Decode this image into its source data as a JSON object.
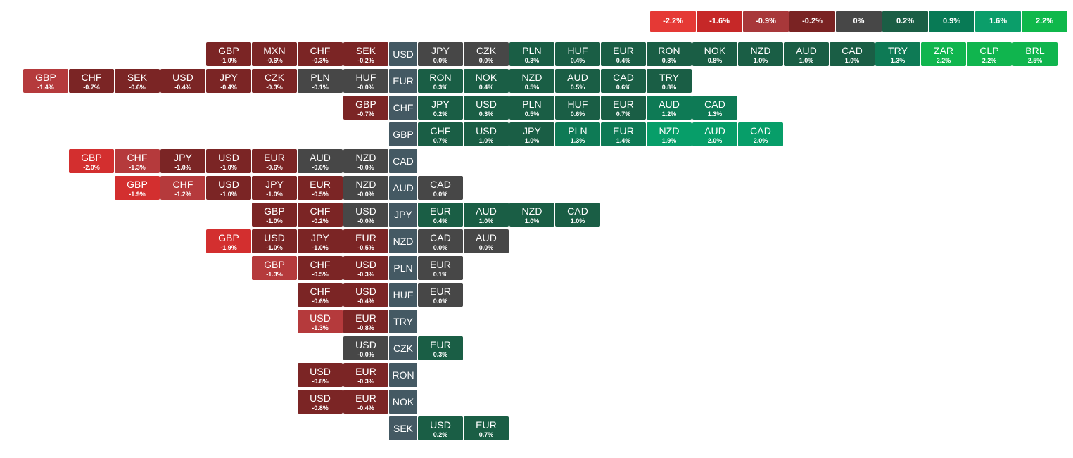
{
  "chart_data": {
    "type": "heatmap",
    "legend": {
      "placement": "top-right",
      "steps": [
        {
          "label": "-2.2%",
          "color": "#e53935"
        },
        {
          "label": "-1.6%",
          "color": "#c62828"
        },
        {
          "label": "-0.9%",
          "color": "#a8383a"
        },
        {
          "label": "-0.2%",
          "color": "#7a2323"
        },
        {
          "label": "0%",
          "color": "#474747"
        },
        {
          "label": "0.2%",
          "color": "#1b5e45"
        },
        {
          "label": "0.9%",
          "color": "#087a55"
        },
        {
          "label": "1.6%",
          "color": "#0b9e6a"
        },
        {
          "label": "2.2%",
          "color": "#0fb84b"
        }
      ]
    },
    "rows": [
      {
        "base": "USD",
        "left": [
          {
            "ccy": "GBP",
            "chg": "-1.0%",
            "value": -1.0
          },
          {
            "ccy": "MXN",
            "chg": "-0.6%",
            "value": -0.6
          },
          {
            "ccy": "CHF",
            "chg": "-0.3%",
            "value": -0.3
          },
          {
            "ccy": "SEK",
            "chg": "-0.2%",
            "value": -0.2
          }
        ],
        "right": [
          {
            "ccy": "JPY",
            "chg": "0.0%",
            "value": 0.0
          },
          {
            "ccy": "CZK",
            "chg": "0.0%",
            "value": 0.0
          },
          {
            "ccy": "PLN",
            "chg": "0.3%",
            "value": 0.3
          },
          {
            "ccy": "HUF",
            "chg": "0.4%",
            "value": 0.4
          },
          {
            "ccy": "EUR",
            "chg": "0.4%",
            "value": 0.4
          },
          {
            "ccy": "RON",
            "chg": "0.8%",
            "value": 0.8
          },
          {
            "ccy": "NOK",
            "chg": "0.8%",
            "value": 0.8
          },
          {
            "ccy": "NZD",
            "chg": "1.0%",
            "value": 1.0
          },
          {
            "ccy": "AUD",
            "chg": "1.0%",
            "value": 1.0
          },
          {
            "ccy": "CAD",
            "chg": "1.0%",
            "value": 1.0
          },
          {
            "ccy": "TRY",
            "chg": "1.3%",
            "value": 1.3
          },
          {
            "ccy": "ZAR",
            "chg": "2.2%",
            "value": 2.2
          },
          {
            "ccy": "CLP",
            "chg": "2.2%",
            "value": 2.2
          },
          {
            "ccy": "BRL",
            "chg": "2.5%",
            "value": 2.5
          }
        ]
      },
      {
        "base": "EUR",
        "left": [
          {
            "ccy": "GBP",
            "chg": "-1.4%",
            "value": -1.4
          },
          {
            "ccy": "CHF",
            "chg": "-0.7%",
            "value": -0.7
          },
          {
            "ccy": "SEK",
            "chg": "-0.6%",
            "value": -0.6
          },
          {
            "ccy": "USD",
            "chg": "-0.4%",
            "value": -0.4
          },
          {
            "ccy": "JPY",
            "chg": "-0.4%",
            "value": -0.4
          },
          {
            "ccy": "CZK",
            "chg": "-0.3%",
            "value": -0.3
          },
          {
            "ccy": "PLN",
            "chg": "-0.1%",
            "value": -0.1
          },
          {
            "ccy": "HUF",
            "chg": "-0.0%",
            "value": -0.0
          }
        ],
        "right": [
          {
            "ccy": "RON",
            "chg": "0.3%",
            "value": 0.3
          },
          {
            "ccy": "NOK",
            "chg": "0.4%",
            "value": 0.4
          },
          {
            "ccy": "NZD",
            "chg": "0.5%",
            "value": 0.5
          },
          {
            "ccy": "AUD",
            "chg": "0.5%",
            "value": 0.5
          },
          {
            "ccy": "CAD",
            "chg": "0.6%",
            "value": 0.6
          },
          {
            "ccy": "TRY",
            "chg": "0.8%",
            "value": 0.8
          }
        ]
      },
      {
        "base": "CHF",
        "left": [
          {
            "ccy": "GBP",
            "chg": "-0.7%",
            "value": -0.7
          }
        ],
        "right": [
          {
            "ccy": "JPY",
            "chg": "0.2%",
            "value": 0.2
          },
          {
            "ccy": "USD",
            "chg": "0.3%",
            "value": 0.3
          },
          {
            "ccy": "PLN",
            "chg": "0.5%",
            "value": 0.5
          },
          {
            "ccy": "HUF",
            "chg": "0.6%",
            "value": 0.6
          },
          {
            "ccy": "EUR",
            "chg": "0.7%",
            "value": 0.7
          },
          {
            "ccy": "AUD",
            "chg": "1.2%",
            "value": 1.2
          },
          {
            "ccy": "CAD",
            "chg": "1.3%",
            "value": 1.3
          }
        ]
      },
      {
        "base": "GBP",
        "left": [],
        "right": [
          {
            "ccy": "CHF",
            "chg": "0.7%",
            "value": 0.7
          },
          {
            "ccy": "USD",
            "chg": "1.0%",
            "value": 1.0
          },
          {
            "ccy": "JPY",
            "chg": "1.0%",
            "value": 1.0
          },
          {
            "ccy": "PLN",
            "chg": "1.3%",
            "value": 1.3
          },
          {
            "ccy": "EUR",
            "chg": "1.4%",
            "value": 1.4
          },
          {
            "ccy": "NZD",
            "chg": "1.9%",
            "value": 1.9
          },
          {
            "ccy": "AUD",
            "chg": "2.0%",
            "value": 2.0
          },
          {
            "ccy": "CAD",
            "chg": "2.0%",
            "value": 2.0
          }
        ]
      },
      {
        "base": "CAD",
        "left": [
          {
            "ccy": "GBP",
            "chg": "-2.0%",
            "value": -2.0
          },
          {
            "ccy": "CHF",
            "chg": "-1.3%",
            "value": -1.3
          },
          {
            "ccy": "JPY",
            "chg": "-1.0%",
            "value": -1.0
          },
          {
            "ccy": "USD",
            "chg": "-1.0%",
            "value": -1.0
          },
          {
            "ccy": "EUR",
            "chg": "-0.6%",
            "value": -0.6
          },
          {
            "ccy": "AUD",
            "chg": "-0.0%",
            "value": -0.0
          },
          {
            "ccy": "NZD",
            "chg": "-0.0%",
            "value": -0.0
          }
        ],
        "right": []
      },
      {
        "base": "AUD",
        "left": [
          {
            "ccy": "GBP",
            "chg": "-1.9%",
            "value": -1.9
          },
          {
            "ccy": "CHF",
            "chg": "-1.2%",
            "value": -1.2
          },
          {
            "ccy": "USD",
            "chg": "-1.0%",
            "value": -1.0
          },
          {
            "ccy": "JPY",
            "chg": "-1.0%",
            "value": -1.0
          },
          {
            "ccy": "EUR",
            "chg": "-0.5%",
            "value": -0.5
          },
          {
            "ccy": "NZD",
            "chg": "-0.0%",
            "value": -0.0
          }
        ],
        "right": [
          {
            "ccy": "CAD",
            "chg": "0.0%",
            "value": 0.0
          }
        ]
      },
      {
        "base": "JPY",
        "left": [
          {
            "ccy": "GBP",
            "chg": "-1.0%",
            "value": -1.0
          },
          {
            "ccy": "CHF",
            "chg": "-0.2%",
            "value": -0.2
          },
          {
            "ccy": "USD",
            "chg": "-0.0%",
            "value": -0.0
          }
        ],
        "right": [
          {
            "ccy": "EUR",
            "chg": "0.4%",
            "value": 0.4
          },
          {
            "ccy": "AUD",
            "chg": "1.0%",
            "value": 1.0
          },
          {
            "ccy": "NZD",
            "chg": "1.0%",
            "value": 1.0
          },
          {
            "ccy": "CAD",
            "chg": "1.0%",
            "value": 1.0
          }
        ]
      },
      {
        "base": "NZD",
        "left": [
          {
            "ccy": "GBP",
            "chg": "-1.9%",
            "value": -1.9
          },
          {
            "ccy": "USD",
            "chg": "-1.0%",
            "value": -1.0
          },
          {
            "ccy": "JPY",
            "chg": "-1.0%",
            "value": -1.0
          },
          {
            "ccy": "EUR",
            "chg": "-0.5%",
            "value": -0.5
          }
        ],
        "right": [
          {
            "ccy": "CAD",
            "chg": "0.0%",
            "value": 0.0
          },
          {
            "ccy": "AUD",
            "chg": "0.0%",
            "value": 0.0
          }
        ]
      },
      {
        "base": "PLN",
        "left": [
          {
            "ccy": "GBP",
            "chg": "-1.3%",
            "value": -1.3
          },
          {
            "ccy": "CHF",
            "chg": "-0.5%",
            "value": -0.5
          },
          {
            "ccy": "USD",
            "chg": "-0.3%",
            "value": -0.3
          }
        ],
        "right": [
          {
            "ccy": "EUR",
            "chg": "0.1%",
            "value": 0.1
          }
        ]
      },
      {
        "base": "HUF",
        "left": [
          {
            "ccy": "CHF",
            "chg": "-0.6%",
            "value": -0.6
          },
          {
            "ccy": "USD",
            "chg": "-0.4%",
            "value": -0.4
          }
        ],
        "right": [
          {
            "ccy": "EUR",
            "chg": "0.0%",
            "value": 0.0
          }
        ]
      },
      {
        "base": "TRY",
        "left": [
          {
            "ccy": "USD",
            "chg": "-1.3%",
            "value": -1.3
          },
          {
            "ccy": "EUR",
            "chg": "-0.8%",
            "value": -0.8
          }
        ],
        "right": []
      },
      {
        "base": "CZK",
        "left": [
          {
            "ccy": "USD",
            "chg": "-0.0%",
            "value": -0.0
          }
        ],
        "right": [
          {
            "ccy": "EUR",
            "chg": "0.3%",
            "value": 0.3
          }
        ]
      },
      {
        "base": "RON",
        "left": [
          {
            "ccy": "USD",
            "chg": "-0.8%",
            "value": -0.8
          },
          {
            "ccy": "EUR",
            "chg": "-0.3%",
            "value": -0.3
          }
        ],
        "right": []
      },
      {
        "base": "NOK",
        "left": [
          {
            "ccy": "USD",
            "chg": "-0.8%",
            "value": -0.8
          },
          {
            "ccy": "EUR",
            "chg": "-0.4%",
            "value": -0.4
          }
        ],
        "right": []
      },
      {
        "base": "SEK",
        "left": [],
        "right": [
          {
            "ccy": "USD",
            "chg": "0.2%",
            "value": 0.2
          },
          {
            "ccy": "EUR",
            "chg": "0.7%",
            "value": 0.7
          }
        ]
      }
    ]
  }
}
